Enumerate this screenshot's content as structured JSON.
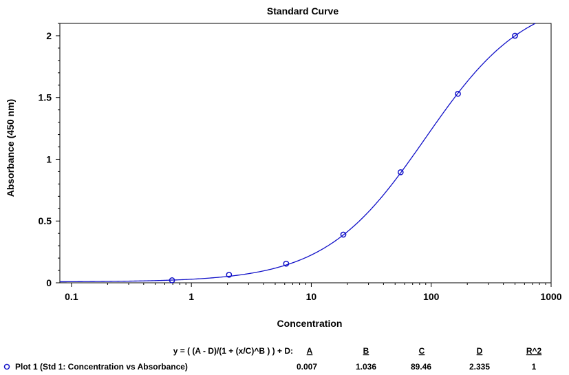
{
  "chart_data": {
    "type": "scatter",
    "title": "Standard Curve",
    "xlabel": "Concentration",
    "ylabel": "Absorbance (450 nm)",
    "xscale": "log",
    "xlim": [
      0.08,
      1000
    ],
    "ylim": [
      0,
      2.1
    ],
    "grid": false,
    "x_ticks": [
      {
        "value": 0.1,
        "label": "0.1"
      },
      {
        "value": 1,
        "label": "1"
      },
      {
        "value": 10,
        "label": "10"
      },
      {
        "value": 100,
        "label": "100"
      },
      {
        "value": 1000,
        "label": "1000"
      }
    ],
    "y_ticks": [
      {
        "value": 0,
        "label": "0"
      },
      {
        "value": 0.5,
        "label": "0.5"
      },
      {
        "value": 1,
        "label": "1"
      },
      {
        "value": 1.5,
        "label": "1.5"
      },
      {
        "value": 2,
        "label": "2"
      }
    ],
    "series": [
      {
        "name": "Plot 1 (Std 1: Concentration vs Absorbance)",
        "color": "#1010c8",
        "marker": "circle",
        "x": [
          0.69,
          2.06,
          6.17,
          18.5,
          55.6,
          167,
          500
        ],
        "y": [
          0.02,
          0.065,
          0.155,
          0.39,
          0.895,
          1.53,
          2.0
        ]
      }
    ],
    "fit": {
      "equation": "y = ( (A - D)/(1 + (x/C)^B ) ) + D:",
      "headers": [
        "A",
        "B",
        "C",
        "D",
        "R^2"
      ],
      "values": [
        "0.007",
        "1.036",
        "89.46",
        "2.335",
        "1"
      ],
      "params": {
        "A": 0.007,
        "B": 1.036,
        "C": 89.46,
        "D": 2.335
      }
    }
  }
}
